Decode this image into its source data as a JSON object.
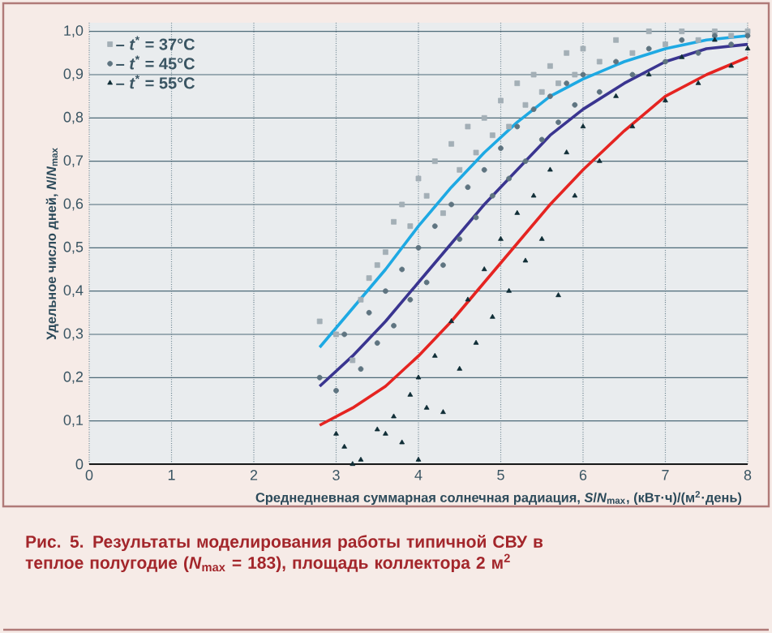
{
  "chart_data": {
    "type": "scatter",
    "xlabel": "Среднедневная суммарная солнечная радиация, *S*/*N*$_{max}$, (кВт·ч)/(м$^{2}$·день)",
    "ylabel": "Удельное число дней, *N*/*N*$_{max}$",
    "annotations": [
      "Рис. 5. Результаты моделирования работы типичной СВУ в теплое полугодие (*N*$_{max}$ = 183), площадь коллектора 2 м$^{2}$"
    ],
    "xlim": [
      0,
      8
    ],
    "ylim": [
      0,
      1.02
    ],
    "xticks": [
      0,
      1,
      2,
      3,
      4,
      5,
      6,
      7,
      8
    ],
    "yticks": [
      0,
      {
        "value": 0.1,
        "label": "0,1"
      },
      {
        "value": 0.2,
        "label": "0,2"
      },
      {
        "value": 0.3,
        "label": "0,3"
      },
      {
        "value": 0.4,
        "label": "0,4"
      },
      {
        "value": 0.5,
        "label": "0,5"
      },
      {
        "value": 0.6,
        "label": "0,6"
      },
      {
        "value": 0.7,
        "label": "0,7"
      },
      {
        "value": 0.8,
        "label": "0,8"
      },
      {
        "value": 0.9,
        "label": "0,9"
      },
      {
        "value": 1.0,
        "label": "1,0"
      }
    ],
    "grid": true,
    "legend": "top left",
    "series": [
      {
        "name": "– *t*$^{*}$ = 37°C",
        "marker": "square",
        "color": "#a3afb6",
        "x": [
          2.8,
          3.0,
          3.2,
          3.3,
          3.4,
          3.5,
          3.6,
          3.7,
          3.8,
          3.9,
          4.0,
          4.1,
          4.2,
          4.3,
          4.4,
          4.5,
          4.6,
          4.7,
          4.8,
          4.9,
          5.0,
          5.1,
          5.2,
          5.3,
          5.4,
          5.5,
          5.6,
          5.7,
          5.8,
          5.9,
          6.0,
          6.2,
          6.4,
          6.6,
          6.8,
          7.0,
          7.2,
          7.4,
          7.6,
          7.8,
          8.0
        ],
        "values": [
          0.33,
          0.3,
          0.24,
          0.38,
          0.43,
          0.46,
          0.49,
          0.56,
          0.6,
          0.55,
          0.66,
          0.62,
          0.7,
          0.58,
          0.74,
          0.68,
          0.78,
          0.72,
          0.8,
          0.76,
          0.84,
          0.78,
          0.88,
          0.83,
          0.9,
          0.86,
          0.92,
          0.88,
          0.95,
          0.9,
          0.96,
          0.93,
          0.98,
          0.95,
          1.0,
          0.97,
          1.0,
          0.98,
          1.0,
          0.99,
          1.0
        ]
      },
      {
        "name": "– *t*$^{*}$ = 45°C",
        "marker": "circle",
        "color": "#5e7480",
        "x": [
          2.8,
          3.0,
          3.1,
          3.3,
          3.4,
          3.5,
          3.6,
          3.7,
          3.8,
          3.9,
          4.0,
          4.1,
          4.2,
          4.3,
          4.4,
          4.5,
          4.6,
          4.7,
          4.8,
          4.9,
          5.0,
          5.1,
          5.2,
          5.3,
          5.4,
          5.5,
          5.6,
          5.7,
          5.8,
          5.9,
          6.0,
          6.2,
          6.4,
          6.6,
          6.8,
          7.0,
          7.2,
          7.4,
          7.6,
          7.8,
          8.0
        ],
        "values": [
          0.2,
          0.17,
          0.3,
          0.22,
          0.35,
          0.28,
          0.4,
          0.32,
          0.45,
          0.38,
          0.5,
          0.42,
          0.55,
          0.46,
          0.6,
          0.52,
          0.64,
          0.57,
          0.68,
          0.62,
          0.73,
          0.66,
          0.78,
          0.7,
          0.82,
          0.75,
          0.85,
          0.79,
          0.88,
          0.83,
          0.9,
          0.86,
          0.93,
          0.9,
          0.96,
          0.93,
          0.98,
          0.95,
          0.99,
          0.97,
          0.99
        ]
      },
      {
        "name": "– *t*$^{*}$ = 55°C",
        "marker": "triangle",
        "color": "#0f2d36",
        "x": [
          3.0,
          3.1,
          3.2,
          3.3,
          3.5,
          3.6,
          3.7,
          3.8,
          3.9,
          4.0,
          4.0,
          4.1,
          4.2,
          4.3,
          4.4,
          4.5,
          4.6,
          4.7,
          4.8,
          4.9,
          5.0,
          5.1,
          5.2,
          5.3,
          5.4,
          5.5,
          5.6,
          5.7,
          5.8,
          5.9,
          6.0,
          6.2,
          6.4,
          6.6,
          6.8,
          7.0,
          7.2,
          7.4,
          7.6,
          7.8,
          8.0
        ],
        "values": [
          0.07,
          0.04,
          0.0,
          0.01,
          0.08,
          0.07,
          0.11,
          0.05,
          0.16,
          0.01,
          0.2,
          0.13,
          0.25,
          0.12,
          0.33,
          0.22,
          0.38,
          0.28,
          0.45,
          0.34,
          0.52,
          0.4,
          0.58,
          0.47,
          0.62,
          0.52,
          0.68,
          0.39,
          0.72,
          0.62,
          0.78,
          0.7,
          0.85,
          0.78,
          0.9,
          0.84,
          0.94,
          0.88,
          0.98,
          0.92,
          0.96
        ]
      },
      {
        "type": "line",
        "color": "#1ea9e3",
        "x": [
          2.8,
          3.2,
          3.6,
          4.0,
          4.4,
          4.8,
          5.2,
          5.6,
          6.0,
          6.5,
          7.0,
          7.5,
          8.0
        ],
        "values": [
          0.27,
          0.36,
          0.45,
          0.55,
          0.64,
          0.72,
          0.79,
          0.85,
          0.89,
          0.93,
          0.96,
          0.98,
          0.99
        ]
      },
      {
        "type": "line",
        "color": "#3a3590",
        "x": [
          2.8,
          3.2,
          3.6,
          4.0,
          4.4,
          4.8,
          5.2,
          5.6,
          6.0,
          6.5,
          7.0,
          7.5,
          8.0
        ],
        "values": [
          0.18,
          0.25,
          0.33,
          0.42,
          0.51,
          0.6,
          0.68,
          0.76,
          0.82,
          0.88,
          0.93,
          0.96,
          0.97
        ]
      },
      {
        "type": "line",
        "color": "#e52421",
        "x": [
          2.8,
          3.2,
          3.6,
          4.0,
          4.4,
          4.8,
          5.2,
          5.6,
          6.0,
          6.5,
          7.0,
          7.5,
          8.0
        ],
        "values": [
          0.09,
          0.13,
          0.18,
          0.25,
          0.33,
          0.42,
          0.51,
          0.6,
          0.68,
          0.77,
          0.85,
          0.9,
          0.94
        ]
      }
    ]
  }
}
